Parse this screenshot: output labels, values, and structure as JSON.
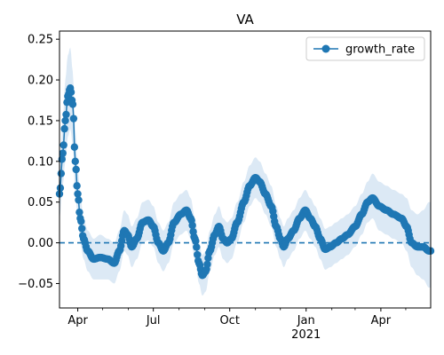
{
  "chart_data": {
    "type": "line",
    "title": "VA",
    "xlabel": "",
    "ylabel": "",
    "x_start": "2020-03-10",
    "x_end": "2021-05-31",
    "ylim": [
      -0.08,
      0.26
    ],
    "x_ticks": [
      {
        "date": "2020-04-01",
        "label": "Apr",
        "sublabel": ""
      },
      {
        "date": "2020-07-01",
        "label": "Jul",
        "sublabel": ""
      },
      {
        "date": "2020-10-01",
        "label": "Oct",
        "sublabel": ""
      },
      {
        "date": "2021-01-01",
        "label": "Jan",
        "sublabel": "2021"
      },
      {
        "date": "2021-04-01",
        "label": "Apr",
        "sublabel": ""
      }
    ],
    "y_ticks": [
      {
        "value": -0.05,
        "label": "−0.05"
      },
      {
        "value": 0.0,
        "label": "0.00"
      },
      {
        "value": 0.05,
        "label": "0.05"
      },
      {
        "value": 0.1,
        "label": "0.10"
      },
      {
        "value": 0.15,
        "label": "0.15"
      },
      {
        "value": 0.2,
        "label": "0.20"
      },
      {
        "value": 0.25,
        "label": "0.25"
      }
    ],
    "reference_line": {
      "y": 0.0,
      "style": "dashed"
    },
    "legend": {
      "position": "top-right",
      "entries": [
        "growth_rate"
      ]
    },
    "grid": false,
    "colors": {
      "series": "#1f77b4",
      "band": "#dce9f5"
    },
    "series": [
      {
        "name": "growth_rate",
        "knots": [
          {
            "x": "2020-03-10",
            "y": 0.06,
            "lo": 0.03,
            "hi": 0.09
          },
          {
            "x": "2020-03-14",
            "y": 0.11,
            "lo": 0.07,
            "hi": 0.15
          },
          {
            "x": "2020-03-17",
            "y": 0.15,
            "lo": 0.1,
            "hi": 0.2
          },
          {
            "x": "2020-03-20",
            "y": 0.18,
            "lo": 0.13,
            "hi": 0.23
          },
          {
            "x": "2020-03-23",
            "y": 0.19,
            "lo": 0.14,
            "hi": 0.24
          },
          {
            "x": "2020-03-26",
            "y": 0.17,
            "lo": 0.12,
            "hi": 0.21
          },
          {
            "x": "2020-03-29",
            "y": 0.1,
            "lo": 0.06,
            "hi": 0.14
          },
          {
            "x": "2020-04-01",
            "y": 0.06,
            "lo": 0.03,
            "hi": 0.09
          },
          {
            "x": "2020-04-04",
            "y": 0.03,
            "lo": 0.0,
            "hi": 0.06
          },
          {
            "x": "2020-04-08",
            "y": 0.005,
            "lo": -0.02,
            "hi": 0.03
          },
          {
            "x": "2020-04-13",
            "y": -0.01,
            "lo": -0.035,
            "hi": 0.015
          },
          {
            "x": "2020-04-20",
            "y": -0.02,
            "lo": -0.045,
            "hi": 0.005
          },
          {
            "x": "2020-04-28",
            "y": -0.018,
            "lo": -0.045,
            "hi": 0.01
          },
          {
            "x": "2020-05-07",
            "y": -0.02,
            "lo": -0.045,
            "hi": 0.005
          },
          {
            "x": "2020-05-15",
            "y": -0.025,
            "lo": -0.05,
            "hi": 0.0
          },
          {
            "x": "2020-05-21",
            "y": -0.01,
            "lo": -0.035,
            "hi": 0.015
          },
          {
            "x": "2020-05-27",
            "y": 0.015,
            "lo": -0.01,
            "hi": 0.04
          },
          {
            "x": "2020-05-31",
            "y": 0.01,
            "lo": -0.015,
            "hi": 0.035
          },
          {
            "x": "2020-06-05",
            "y": -0.005,
            "lo": -0.03,
            "hi": 0.02
          },
          {
            "x": "2020-06-11",
            "y": 0.005,
            "lo": -0.02,
            "hi": 0.03
          },
          {
            "x": "2020-06-18",
            "y": 0.025,
            "lo": 0.0,
            "hi": 0.05
          },
          {
            "x": "2020-06-25",
            "y": 0.028,
            "lo": 0.003,
            "hi": 0.053
          },
          {
            "x": "2020-07-01",
            "y": 0.02,
            "lo": -0.005,
            "hi": 0.045
          },
          {
            "x": "2020-07-07",
            "y": 0.0,
            "lo": -0.025,
            "hi": 0.025
          },
          {
            "x": "2020-07-13",
            "y": -0.01,
            "lo": -0.035,
            "hi": 0.015
          },
          {
            "x": "2020-07-19",
            "y": 0.0,
            "lo": -0.025,
            "hi": 0.025
          },
          {
            "x": "2020-07-26",
            "y": 0.025,
            "lo": 0.0,
            "hi": 0.05
          },
          {
            "x": "2020-08-03",
            "y": 0.035,
            "lo": 0.01,
            "hi": 0.06
          },
          {
            "x": "2020-08-10",
            "y": 0.04,
            "lo": 0.015,
            "hi": 0.065
          },
          {
            "x": "2020-08-15",
            "y": 0.03,
            "lo": 0.005,
            "hi": 0.055
          },
          {
            "x": "2020-08-20",
            "y": 0.005,
            "lo": -0.02,
            "hi": 0.03
          },
          {
            "x": "2020-08-25",
            "y": -0.025,
            "lo": -0.05,
            "hi": 0.0
          },
          {
            "x": "2020-08-29",
            "y": -0.04,
            "lo": -0.065,
            "hi": -0.015
          },
          {
            "x": "2020-09-02",
            "y": -0.035,
            "lo": -0.06,
            "hi": -0.01
          },
          {
            "x": "2020-09-07",
            "y": -0.01,
            "lo": -0.035,
            "hi": 0.015
          },
          {
            "x": "2020-09-13",
            "y": 0.01,
            "lo": -0.015,
            "hi": 0.035
          },
          {
            "x": "2020-09-18",
            "y": 0.02,
            "lo": -0.005,
            "hi": 0.045
          },
          {
            "x": "2020-09-23",
            "y": 0.005,
            "lo": -0.02,
            "hi": 0.03
          },
          {
            "x": "2020-09-28",
            "y": 0.0,
            "lo": -0.025,
            "hi": 0.025
          },
          {
            "x": "2020-10-03",
            "y": 0.005,
            "lo": -0.02,
            "hi": 0.03
          },
          {
            "x": "2020-10-10",
            "y": 0.025,
            "lo": 0.0,
            "hi": 0.05
          },
          {
            "x": "2020-10-18",
            "y": 0.05,
            "lo": 0.025,
            "hi": 0.075
          },
          {
            "x": "2020-10-25",
            "y": 0.07,
            "lo": 0.045,
            "hi": 0.095
          },
          {
            "x": "2020-11-01",
            "y": 0.08,
            "lo": 0.055,
            "hi": 0.105
          },
          {
            "x": "2020-11-06",
            "y": 0.075,
            "lo": 0.05,
            "hi": 0.1
          },
          {
            "x": "2020-11-13",
            "y": 0.06,
            "lo": 0.035,
            "hi": 0.085
          },
          {
            "x": "2020-11-20",
            "y": 0.045,
            "lo": 0.02,
            "hi": 0.07
          },
          {
            "x": "2020-11-26",
            "y": 0.02,
            "lo": -0.005,
            "hi": 0.045
          },
          {
            "x": "2020-12-01",
            "y": 0.005,
            "lo": -0.02,
            "hi": 0.03
          },
          {
            "x": "2020-12-05",
            "y": -0.005,
            "lo": -0.03,
            "hi": 0.02
          },
          {
            "x": "2020-12-10",
            "y": 0.005,
            "lo": -0.02,
            "hi": 0.03
          },
          {
            "x": "2020-12-17",
            "y": 0.015,
            "lo": -0.01,
            "hi": 0.04
          },
          {
            "x": "2020-12-24",
            "y": 0.03,
            "lo": 0.005,
            "hi": 0.055
          },
          {
            "x": "2020-12-31",
            "y": 0.04,
            "lo": 0.015,
            "hi": 0.065
          },
          {
            "x": "2021-01-06",
            "y": 0.03,
            "lo": 0.005,
            "hi": 0.055
          },
          {
            "x": "2021-01-12",
            "y": 0.02,
            "lo": -0.005,
            "hi": 0.045
          },
          {
            "x": "2021-01-18",
            "y": 0.005,
            "lo": -0.02,
            "hi": 0.03
          },
          {
            "x": "2021-01-24",
            "y": -0.008,
            "lo": -0.033,
            "hi": 0.017
          },
          {
            "x": "2021-01-30",
            "y": -0.005,
            "lo": -0.03,
            "hi": 0.02
          },
          {
            "x": "2021-02-06",
            "y": 0.0,
            "lo": -0.025,
            "hi": 0.025
          },
          {
            "x": "2021-02-13",
            "y": 0.005,
            "lo": -0.02,
            "hi": 0.03
          },
          {
            "x": "2021-02-20",
            "y": 0.01,
            "lo": -0.015,
            "hi": 0.035
          },
          {
            "x": "2021-03-01",
            "y": 0.02,
            "lo": -0.005,
            "hi": 0.045
          },
          {
            "x": "2021-03-09",
            "y": 0.035,
            "lo": 0.01,
            "hi": 0.06
          },
          {
            "x": "2021-03-16",
            "y": 0.05,
            "lo": 0.025,
            "hi": 0.075
          },
          {
            "x": "2021-03-22",
            "y": 0.055,
            "lo": 0.03,
            "hi": 0.085
          },
          {
            "x": "2021-03-30",
            "y": 0.045,
            "lo": 0.015,
            "hi": 0.075
          },
          {
            "x": "2021-04-08",
            "y": 0.04,
            "lo": 0.01,
            "hi": 0.07
          },
          {
            "x": "2021-04-16",
            "y": 0.035,
            "lo": 0.005,
            "hi": 0.065
          },
          {
            "x": "2021-04-26",
            "y": 0.03,
            "lo": 0.0,
            "hi": 0.06
          },
          {
            "x": "2021-05-02",
            "y": 0.02,
            "lo": -0.01,
            "hi": 0.055
          },
          {
            "x": "2021-05-08",
            "y": 0.0,
            "lo": -0.03,
            "hi": 0.04
          },
          {
            "x": "2021-05-15",
            "y": -0.005,
            "lo": -0.04,
            "hi": 0.035
          },
          {
            "x": "2021-05-22",
            "y": -0.005,
            "lo": -0.045,
            "hi": 0.04
          },
          {
            "x": "2021-05-29",
            "y": -0.01,
            "lo": -0.055,
            "hi": 0.05
          }
        ]
      }
    ]
  }
}
